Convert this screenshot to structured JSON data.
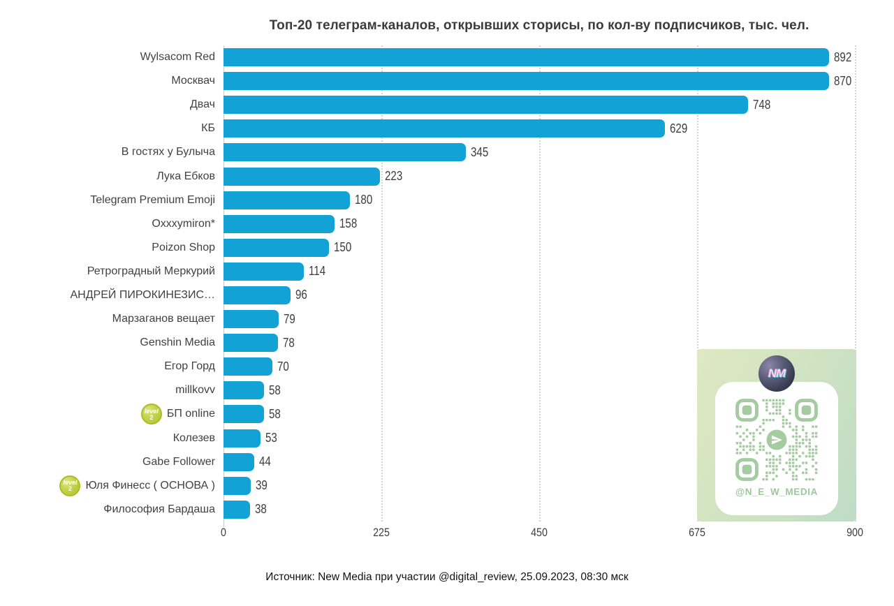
{
  "title": "Топ-20 телеграм-каналов, открывших сторисы, по кол-ву подписчиков, тыс. чел.",
  "source": "Источник: New Media при участии @digital_review, 25.09.2023, 08:30 мск",
  "colors": {
    "bar": "#12a2d6",
    "badge": "#b2c52c",
    "qr_green": "#a5cba1",
    "panel_bg": "#cde2c2"
  },
  "chart_data": {
    "type": "bar",
    "orientation": "horizontal",
    "title": "Топ-20 телеграм-каналов, открывших сторисы, по кол-ву подписчиков, тыс. чел.",
    "xlabel": "",
    "ylabel": "",
    "xlim": [
      0,
      900
    ],
    "xticks": [
      0,
      225,
      450,
      675,
      900
    ],
    "grid": "vertical-dotted",
    "categories": [
      "Wylsacom Red",
      "Москвач",
      "Двач",
      "КБ",
      "В гостях у Булыча",
      "Лука Ебков",
      "Telegram Premium Emoji",
      "Oxxxymiron*",
      "Poizon Shop",
      "Ретроградный Меркурий",
      "АНДРЕЙ ПИРОКИНЕЗИС…",
      "Марзаганов вещает",
      "Genshin Media",
      "Егор Горд",
      "millkovv",
      "БП online",
      "Колезев",
      "Gabe Follower",
      "Юля Финесс ( ОСНОВА )",
      "Философия Бардаша"
    ],
    "values": [
      892,
      870,
      748,
      629,
      345,
      223,
      180,
      158,
      150,
      114,
      96,
      79,
      78,
      70,
      58,
      58,
      53,
      44,
      39,
      38
    ],
    "badge_rows": [
      15,
      18
    ],
    "badge": {
      "label": "level",
      "number": "2"
    }
  },
  "qr_panel": {
    "handle": "@N_E_W_MEDIA",
    "avatar_initials": "NM"
  }
}
